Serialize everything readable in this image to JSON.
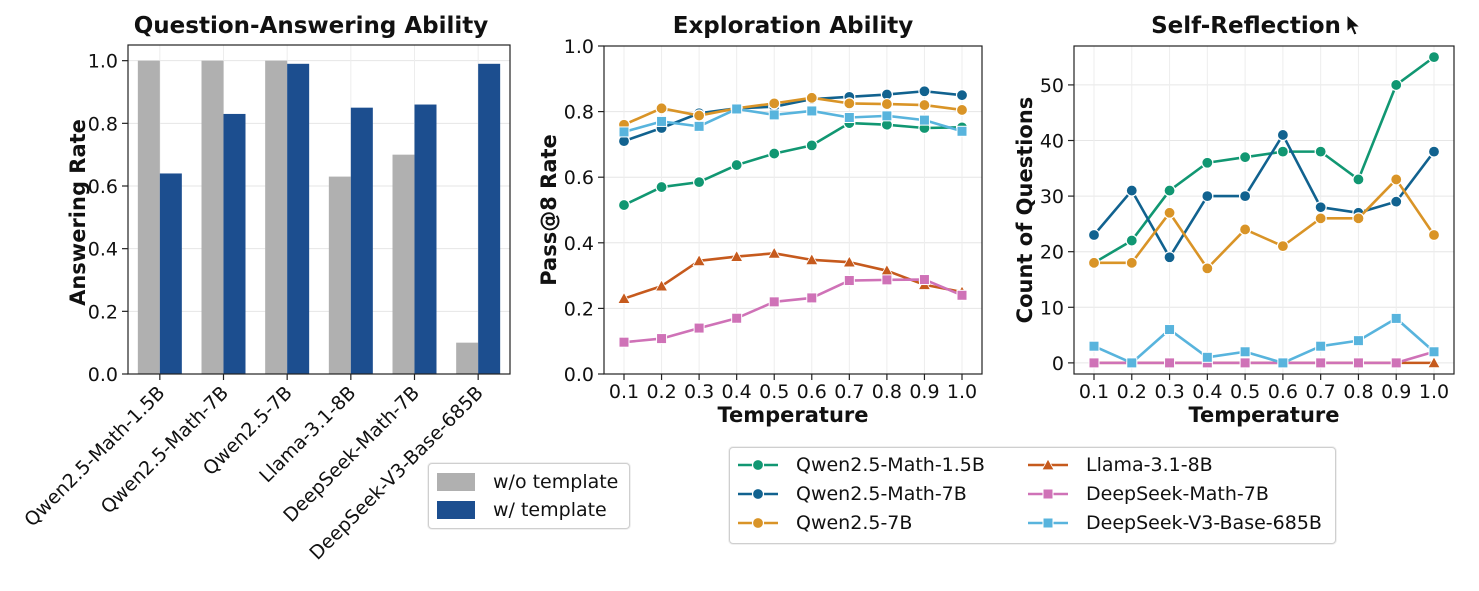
{
  "chart_data": [
    {
      "type": "bar",
      "title": "Question-Answering Ability",
      "xlabel": "",
      "ylabel": "Answering Rate",
      "ylim": [
        0,
        1.05
      ],
      "yticks": [
        "0.0",
        "0.2",
        "0.4",
        "0.6",
        "0.8",
        "1.0"
      ],
      "categories": [
        "Qwen2.5-Math-1.5B",
        "Qwen2.5-Math-7B",
        "Qwen2.5-7B",
        "Llama-3.1-8B",
        "DeepSeek-Math-7B",
        "DeepSeek-V3-Base-685B"
      ],
      "series": [
        {
          "name": "w/o template",
          "color": "#b0b0b0",
          "values": [
            1.0,
            1.0,
            1.0,
            0.63,
            0.7,
            0.1
          ]
        },
        {
          "name": "w/ template",
          "color": "#1c4e8f",
          "values": [
            0.64,
            0.83,
            0.99,
            0.85,
            0.86,
            0.99
          ]
        }
      ],
      "grid": true,
      "legend": "bottom-center"
    },
    {
      "type": "line",
      "title": "Exploration Ability",
      "xlabel": "Temperature",
      "ylabel": "Pass@8 Rate",
      "ylim": [
        0,
        1.0
      ],
      "yticks": [
        "0.0",
        "0.2",
        "0.4",
        "0.6",
        "0.8",
        "1.0"
      ],
      "x": [
        "0.1",
        "0.2",
        "0.3",
        "0.4",
        "0.5",
        "0.6",
        "0.7",
        "0.8",
        "0.9",
        "1.0"
      ],
      "series": [
        {
          "name": "Qwen2.5-Math-1.5B",
          "color": "#119772",
          "marker": "circle",
          "values": [
            0.515,
            0.57,
            0.585,
            0.637,
            0.672,
            0.697,
            0.765,
            0.76,
            0.75,
            0.752
          ]
        },
        {
          "name": "Qwen2.5-Math-7B",
          "color": "#11628f",
          "marker": "circle",
          "values": [
            0.71,
            0.75,
            0.795,
            0.81,
            0.815,
            0.838,
            0.845,
            0.852,
            0.862,
            0.85
          ]
        },
        {
          "name": "Qwen2.5-7B",
          "color": "#d99427",
          "marker": "circle",
          "values": [
            0.76,
            0.81,
            0.788,
            0.81,
            0.825,
            0.842,
            0.825,
            0.823,
            0.82,
            0.805
          ]
        },
        {
          "name": "Llama-3.1-8B",
          "color": "#c65a1d",
          "marker": "triangle",
          "values": [
            0.23,
            0.268,
            0.345,
            0.358,
            0.368,
            0.348,
            0.341,
            0.315,
            0.272,
            0.25
          ]
        },
        {
          "name": "DeepSeek-Math-7B",
          "color": "#cf72b7",
          "marker": "square",
          "values": [
            0.097,
            0.108,
            0.14,
            0.17,
            0.22,
            0.232,
            0.285,
            0.287,
            0.288,
            0.24
          ]
        },
        {
          "name": "DeepSeek-V3-Base-685B",
          "color": "#58b4dd",
          "marker": "square",
          "values": [
            0.738,
            0.77,
            0.755,
            0.808,
            0.79,
            0.802,
            0.782,
            0.787,
            0.774,
            0.74
          ]
        }
      ],
      "grid": true
    },
    {
      "type": "line",
      "title": "Self-Reflection",
      "xlabel": "Temperature",
      "ylabel": "Count of Questions",
      "ylim": [
        -2,
        57
      ],
      "yticks": [
        "0",
        "10",
        "20",
        "30",
        "40",
        "50"
      ],
      "x": [
        "0.1",
        "0.2",
        "0.3",
        "0.4",
        "0.5",
        "0.6",
        "0.7",
        "0.8",
        "0.9",
        "1.0"
      ],
      "series": [
        {
          "name": "Qwen2.5-Math-1.5B",
          "color": "#119772",
          "marker": "circle",
          "values": [
            18,
            22,
            31,
            36,
            37,
            38,
            38,
            33,
            50,
            55
          ]
        },
        {
          "name": "Qwen2.5-Math-7B",
          "color": "#11628f",
          "marker": "circle",
          "values": [
            23,
            31,
            19,
            30,
            30,
            41,
            28,
            27,
            29,
            38
          ]
        },
        {
          "name": "Qwen2.5-7B",
          "color": "#d99427",
          "marker": "circle",
          "values": [
            18,
            18,
            27,
            17,
            24,
            21,
            26,
            26,
            33,
            23
          ]
        },
        {
          "name": "Llama-3.1-8B",
          "color": "#c65a1d",
          "marker": "triangle",
          "values": [
            0,
            0,
            0,
            0,
            0,
            0,
            0,
            0,
            0,
            0
          ]
        },
        {
          "name": "DeepSeek-Math-7B",
          "color": "#cf72b7",
          "marker": "square",
          "values": [
            0,
            0,
            0,
            0,
            0,
            0,
            0,
            0,
            0,
            2
          ]
        },
        {
          "name": "DeepSeek-V3-Base-685B",
          "color": "#58b4dd",
          "marker": "square",
          "values": [
            3,
            0,
            6,
            1,
            2,
            0,
            3,
            4,
            8,
            2
          ]
        }
      ],
      "grid": true,
      "legend": "bottom-center (shared)"
    }
  ],
  "legends": {
    "bar": [
      {
        "label": "w/o template",
        "color": "#b0b0b0"
      },
      {
        "label": "w/ template",
        "color": "#1c4e8f"
      }
    ],
    "lines": [
      {
        "label": "Qwen2.5-Math-1.5B",
        "color": "#119772",
        "marker": "circle"
      },
      {
        "label": "Qwen2.5-Math-7B",
        "color": "#11628f",
        "marker": "circle"
      },
      {
        "label": "Qwen2.5-7B",
        "color": "#d99427",
        "marker": "circle"
      },
      {
        "label": "Llama-3.1-8B",
        "color": "#c65a1d",
        "marker": "triangle"
      },
      {
        "label": "DeepSeek-Math-7B",
        "color": "#cf72b7",
        "marker": "square"
      },
      {
        "label": "DeepSeek-V3-Base-685B",
        "color": "#58b4dd",
        "marker": "square"
      }
    ]
  }
}
